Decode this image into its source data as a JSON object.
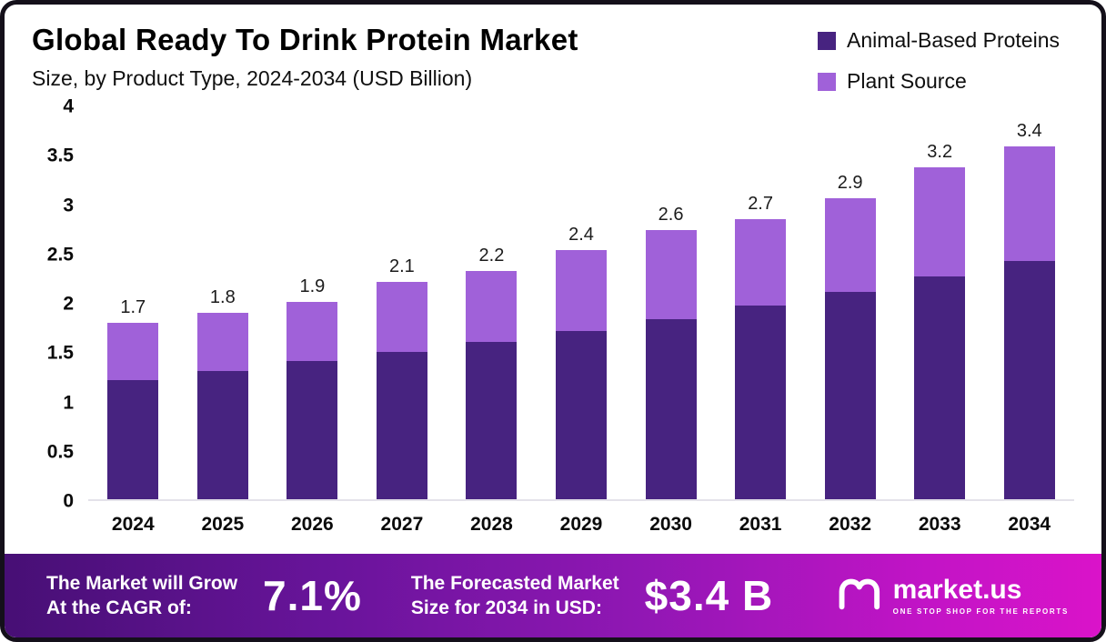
{
  "header": {
    "title": "Global Ready To Drink Protein Market",
    "subtitle": "Size, by Product Type, 2024-2034 (USD Billion)"
  },
  "legend": [
    {
      "label": "Animal-Based Proteins",
      "color": "#472380"
    },
    {
      "label": "Plant Source",
      "color": "#a061d9"
    }
  ],
  "chart_data": {
    "type": "bar",
    "stacked": true,
    "title": "Global Ready To Drink Protein Market Size, by Product Type, 2024-2034 (USD Billion)",
    "categories": [
      "2024",
      "2025",
      "2026",
      "2027",
      "2028",
      "2029",
      "2030",
      "2031",
      "2032",
      "2033",
      "2034"
    ],
    "series": [
      {
        "name": "Animal-Based Proteins",
        "color": "#472380",
        "values": [
          1.15,
          1.24,
          1.33,
          1.42,
          1.52,
          1.62,
          1.74,
          1.87,
          2.0,
          2.15,
          2.3
        ]
      },
      {
        "name": "Plant Source",
        "color": "#a061d9",
        "values": [
          0.55,
          0.56,
          0.57,
          0.68,
          0.68,
          0.78,
          0.86,
          0.83,
          0.9,
          1.05,
          1.1
        ]
      }
    ],
    "totals": [
      "1.7",
      "1.8",
      "1.9",
      "2.1",
      "2.2",
      "2.4",
      "2.6",
      "2.7",
      "2.9",
      "3.2",
      "3.4"
    ],
    "xlabel": "",
    "ylabel": "",
    "ylim": [
      0,
      4
    ],
    "yticks": [
      0,
      0.5,
      1,
      1.5,
      2,
      2.5,
      3,
      3.5,
      4
    ],
    "grid": false,
    "legend_position": "top-right"
  },
  "footer": {
    "cagr_label": "The Market will Grow\nAt the CAGR of:",
    "cagr_value": "7.1%",
    "forecast_label": "The Forecasted Market\nSize for 2034 in USD:",
    "forecast_value": "$3.4 B",
    "brand": "market.us",
    "brand_tagline": "ONE STOP SHOP FOR THE REPORTS"
  }
}
